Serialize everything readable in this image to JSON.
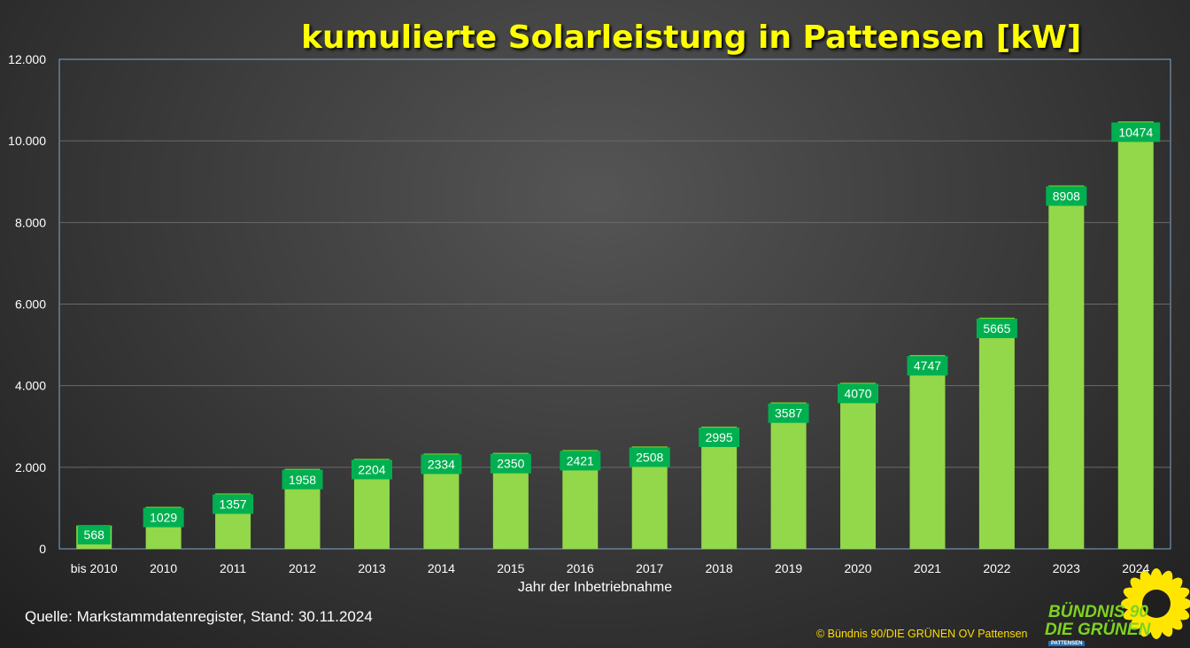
{
  "chart_data": {
    "type": "bar",
    "title": "kumulierte Solarleistung in Pattensen [kW]",
    "xlabel": "Jahr der Inbetriebnahme",
    "ylabel": "",
    "ylim": [
      0,
      12000
    ],
    "yticks": [
      "0",
      "2.000",
      "4.000",
      "6.000",
      "8.000",
      "10.000",
      "12.000"
    ],
    "ytick_values": [
      0,
      2000,
      4000,
      6000,
      8000,
      10000,
      12000
    ],
    "grid": true,
    "categories": [
      "bis 2010",
      "2010",
      "2011",
      "2012",
      "2013",
      "2014",
      "2015",
      "2016",
      "2017",
      "2018",
      "2019",
      "2020",
      "2021",
      "2022",
      "2023",
      "2024"
    ],
    "values": [
      568,
      1029,
      1357,
      1958,
      2204,
      2334,
      2350,
      2421,
      2508,
      2995,
      3587,
      4070,
      4747,
      5665,
      8908,
      10474
    ],
    "colors": {
      "bar": "#92d84a",
      "bar_top": "#7ed321",
      "label_bg": "#00b050",
      "label_text": "#ffffff",
      "grid": "#6a6a6a",
      "axis_text": "#ffffff",
      "title": "#ffff00"
    }
  },
  "footer": {
    "source": "Quelle: Markstammdatenregister, Stand: 30.11.2024",
    "copyright": "© Bündnis 90/DIE GRÜNEN OV Pattensen"
  },
  "logo": {
    "line1": "BÜNDNIS 90",
    "line2": "DIE GRÜNEN",
    "sub": "PATTENSEN",
    "icon": "sunflower-icon"
  }
}
